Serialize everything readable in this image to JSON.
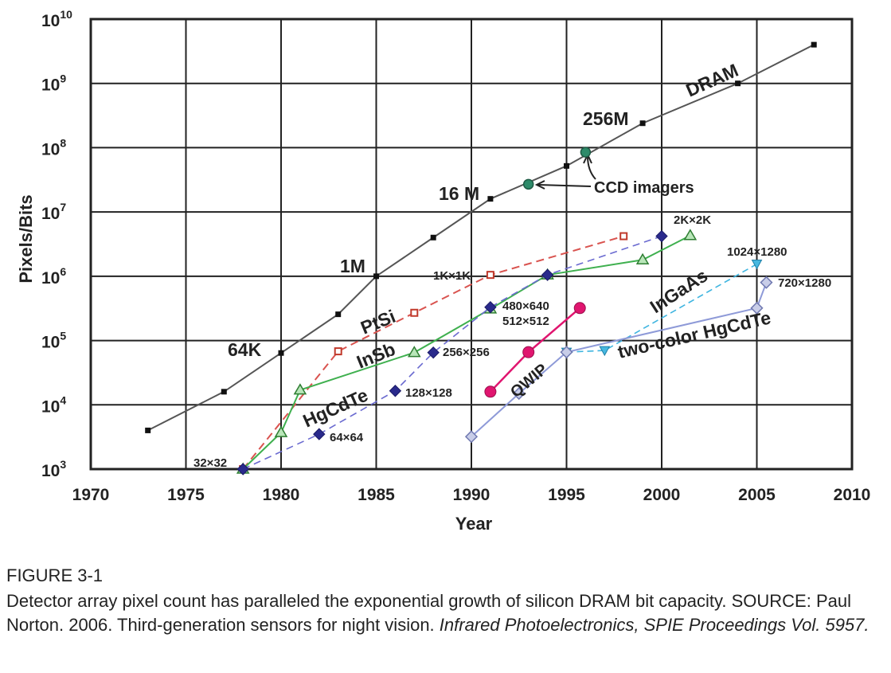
{
  "chart_data": {
    "type": "scatter",
    "xlabel": "Year",
    "ylabel": "Pixels/Bits",
    "x_ticks": [
      "1970",
      "1975",
      "1980",
      "1985",
      "1990",
      "1995",
      "2000",
      "2005",
      "2010"
    ],
    "y_ticks": [
      {
        "base": "10",
        "exp": "3"
      },
      {
        "base": "10",
        "exp": "4"
      },
      {
        "base": "10",
        "exp": "5"
      },
      {
        "base": "10",
        "exp": "6"
      },
      {
        "base": "10",
        "exp": "7"
      },
      {
        "base": "10",
        "exp": "8"
      },
      {
        "base": "10",
        "exp": "9"
      },
      {
        "base": "10",
        "exp": "10"
      }
    ],
    "xlim": [
      1970,
      2010
    ],
    "ylim": [
      1000,
      10000000000
    ],
    "y_scale": "log",
    "grid": true,
    "series": [
      {
        "style": "dram",
        "color": "#555555",
        "points": [
          [
            1973,
            4000
          ],
          [
            1977,
            16000
          ],
          [
            1980,
            64000
          ],
          [
            1983,
            256000
          ],
          [
            1985,
            1000000
          ],
          [
            1988,
            4000000
          ],
          [
            1991,
            16000000
          ],
          [
            1995,
            52000000
          ],
          [
            1999,
            240000000
          ],
          [
            2004,
            1000000000
          ],
          [
            2008,
            4000000000
          ]
        ]
      },
      {
        "style": "ccd",
        "color": "#2e8b6a",
        "points": [
          [
            1993,
            27000000
          ],
          [
            1996,
            85000000
          ]
        ]
      },
      {
        "style": "ptsi",
        "color": "#d9534f",
        "points": [
          [
            1978,
            1000
          ],
          [
            1983,
            68000
          ],
          [
            1987,
            270000
          ],
          [
            1991,
            1050000
          ],
          [
            1998,
            4200000
          ]
        ]
      },
      {
        "style": "insb",
        "color": "#3fb04f",
        "points": [
          [
            1978,
            1000
          ],
          [
            1980,
            3700
          ],
          [
            1981,
            17000
          ],
          [
            1987,
            65000
          ],
          [
            1991,
            310000
          ],
          [
            1994,
            1050000
          ],
          [
            1999,
            1800000
          ],
          [
            2001.5,
            4300000
          ]
        ]
      },
      {
        "style": "hgcdte",
        "color": "#6a6ad0",
        "points": [
          [
            1978,
            1000
          ],
          [
            1982,
            3500
          ],
          [
            1986,
            16500
          ],
          [
            1988,
            65000
          ],
          [
            1991,
            330000
          ],
          [
            1994,
            1050000
          ],
          [
            2000,
            4200000
          ]
        ]
      },
      {
        "style": "qwip",
        "color": "#e0156f",
        "points": [
          [
            1991,
            16000
          ],
          [
            1993,
            66000
          ],
          [
            1995.7,
            320000
          ]
        ]
      },
      {
        "style": "ingaas",
        "color": "#3fb5e0",
        "points": [
          [
            1995,
            66000
          ],
          [
            1997,
            70000
          ],
          [
            2005,
            1550000
          ]
        ]
      },
      {
        "style": "twocolor",
        "color": "#8e9ad8",
        "points": [
          [
            1990,
            3200
          ],
          [
            1992.5,
            15000
          ],
          [
            1995,
            66000
          ],
          [
            2005,
            320000
          ],
          [
            2005.5,
            800000
          ]
        ]
      }
    ],
    "annotations": {
      "dram": "DRAM",
      "m256": "256M",
      "m16": "16 M",
      "m1": "1M",
      "k64": "64K",
      "ccd": "CCD imagers",
      "ptsi": "PtSi",
      "insb": "InSb",
      "hgcdte": "HgCdTe",
      "qwip": "QWIP",
      "ingaas": "InGaAs",
      "twocolor": "two-color HgCdTe",
      "a32": "32×32",
      "a64": "64×64",
      "a128": "128×128",
      "a256": "256×256",
      "a1k": "1K×1K",
      "a480": "480×640",
      "a512": "512×512",
      "a2k": "2K×2K",
      "a1024": "1024×1280",
      "a720": "720×1280"
    }
  },
  "caption": {
    "label": "FIGURE 3-1",
    "text": "Detector array pixel count has paralleled the exponential growth of silicon DRAM bit capacity. SOURCE: Paul Norton. 2006. Third-generation sensors for night vision.",
    "citation": "Infrared Photoelectronics, SPIE Proceedings Vol. 5957."
  }
}
